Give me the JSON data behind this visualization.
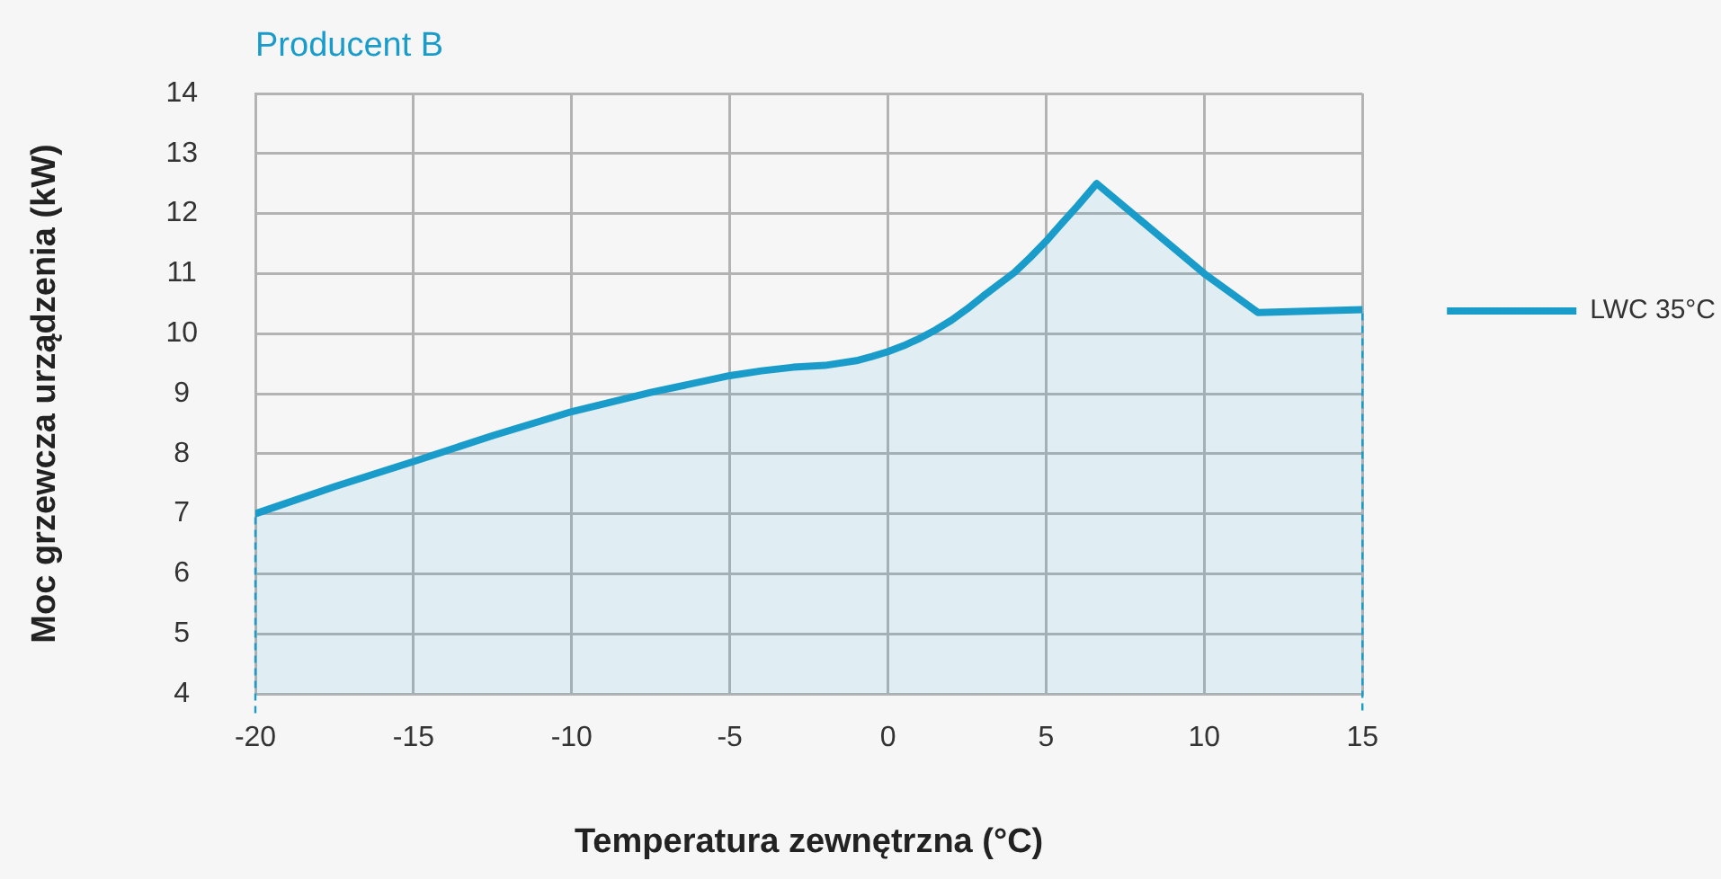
{
  "chart_data": {
    "type": "area",
    "title": "Producent B",
    "xlabel": "Temperatura zewnętrzna (°C)",
    "ylabel": "Moc grzewcza urządzenia (kW)",
    "x": [
      -20,
      -17.5,
      -15,
      -12.5,
      -10,
      -7.5,
      -5,
      -4,
      -3,
      -2,
      -1,
      -0.5,
      0,
      0.5,
      1,
      1.5,
      2,
      2.5,
      3,
      3.5,
      4,
      4.5,
      5,
      5.5,
      6,
      6.6,
      10,
      11.7,
      15
    ],
    "series": [
      {
        "name": "LWC 35°C",
        "color": "#1a9ccb",
        "values": [
          7.0,
          7.45,
          7.87,
          8.3,
          8.7,
          9.02,
          9.3,
          9.38,
          9.44,
          9.47,
          9.55,
          9.62,
          9.7,
          9.8,
          9.92,
          10.06,
          10.22,
          10.41,
          10.62,
          10.82,
          11.02,
          11.27,
          11.54,
          11.84,
          12.13,
          12.5,
          11.0,
          10.35,
          10.4
        ]
      }
    ],
    "xlim": [
      -20,
      15
    ],
    "xticks": [
      -20,
      -15,
      -10,
      -5,
      0,
      5,
      10,
      15
    ],
    "ylim": [
      4,
      14
    ],
    "yticks": [
      4,
      5,
      6,
      7,
      8,
      9,
      10,
      11,
      12,
      13,
      14
    ],
    "grid": true,
    "legend": "right"
  }
}
